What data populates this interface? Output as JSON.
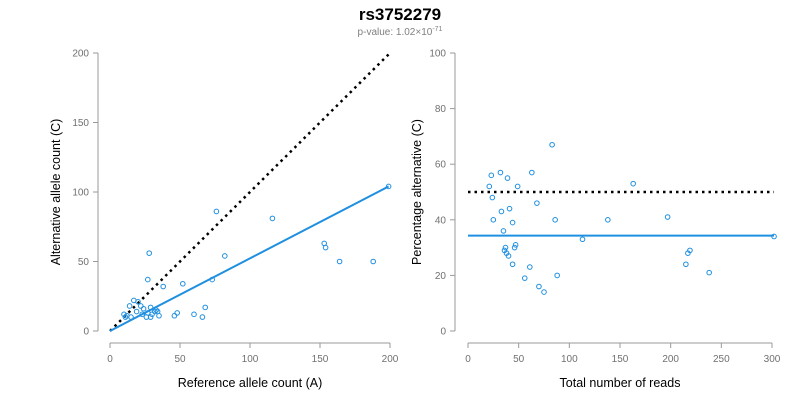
{
  "header": {
    "title": "rs3752279",
    "pvalue_prefix": "p-value: 1.02×10",
    "pvalue_exponent": "-71"
  },
  "colors": {
    "points": "#1f8fe0",
    "fit_line": "#1f8fe0",
    "reference_line": "#000000",
    "axis": "#9a9a9a"
  },
  "chart_data": [
    {
      "type": "scatter",
      "xlabel": "Reference allele count (A)",
      "ylabel": "Alternative allele count (C)",
      "xlim": [
        0,
        200
      ],
      "ylim": [
        0,
        200
      ],
      "xticks": [
        "0",
        "50",
        "100",
        "150",
        "200"
      ],
      "yticks": [
        "0",
        "50",
        "100",
        "150",
        "200"
      ],
      "grid": false,
      "points": [
        [
          10,
          12
        ],
        [
          11,
          10
        ],
        [
          12,
          11
        ],
        [
          14,
          18
        ],
        [
          15,
          10
        ],
        [
          17,
          22
        ],
        [
          19,
          14
        ],
        [
          20,
          21
        ],
        [
          22,
          18
        ],
        [
          23,
          12
        ],
        [
          24,
          16
        ],
        [
          26,
          10
        ],
        [
          27,
          13
        ],
        [
          27,
          37
        ],
        [
          28,
          56
        ],
        [
          29,
          17
        ],
        [
          29,
          10
        ],
        [
          30,
          12
        ],
        [
          32,
          14
        ],
        [
          33,
          15
        ],
        [
          34,
          14
        ],
        [
          35,
          11
        ],
        [
          38,
          32
        ],
        [
          46,
          11
        ],
        [
          48,
          13
        ],
        [
          52,
          34
        ],
        [
          60,
          12
        ],
        [
          66,
          10
        ],
        [
          68,
          17
        ],
        [
          73,
          37
        ],
        [
          76,
          86
        ],
        [
          82,
          54
        ],
        [
          116,
          81
        ],
        [
          153,
          63
        ],
        [
          154,
          60
        ],
        [
          164,
          50
        ],
        [
          188,
          50
        ],
        [
          199,
          104
        ]
      ],
      "fit_line": {
        "x": [
          0,
          199
        ],
        "y": [
          0,
          104
        ]
      },
      "reference_line": {
        "x": [
          0,
          200
        ],
        "y": [
          0,
          200
        ]
      }
    },
    {
      "type": "scatter",
      "xlabel": "Total number of reads",
      "ylabel": "Percentage alternative (C)",
      "xlim": [
        0,
        300
      ],
      "ylim": [
        0,
        100
      ],
      "xticks": [
        "0",
        "50",
        "100",
        "150",
        "200",
        "250",
        "300"
      ],
      "yticks": [
        "0",
        "20",
        "40",
        "60",
        "80",
        "100"
      ],
      "grid": false,
      "points": [
        [
          21,
          52
        ],
        [
          23,
          56
        ],
        [
          24,
          48
        ],
        [
          25,
          40
        ],
        [
          32,
          57
        ],
        [
          33,
          43
        ],
        [
          35,
          36
        ],
        [
          36,
          29
        ],
        [
          37,
          30
        ],
        [
          38,
          28
        ],
        [
          39,
          55
        ],
        [
          40,
          27
        ],
        [
          41,
          44
        ],
        [
          44,
          39
        ],
        [
          44,
          24
        ],
        [
          46,
          30
        ],
        [
          47,
          31
        ],
        [
          49,
          52
        ],
        [
          56,
          19
        ],
        [
          61,
          23
        ],
        [
          63,
          57
        ],
        [
          68,
          46
        ],
        [
          70,
          16
        ],
        [
          75,
          14
        ],
        [
          83,
          67
        ],
        [
          86,
          40
        ],
        [
          88,
          20
        ],
        [
          113,
          33
        ],
        [
          138,
          40
        ],
        [
          163,
          53
        ],
        [
          197,
          41
        ],
        [
          215,
          24
        ],
        [
          217,
          28
        ],
        [
          219,
          29
        ],
        [
          238,
          21
        ],
        [
          302,
          34
        ]
      ],
      "fit_line": {
        "x": [
          0,
          302
        ],
        "y": [
          34.3,
          34.3
        ]
      },
      "reference_line": {
        "x": [
          0,
          302
        ],
        "y": [
          50,
          50
        ]
      }
    }
  ]
}
